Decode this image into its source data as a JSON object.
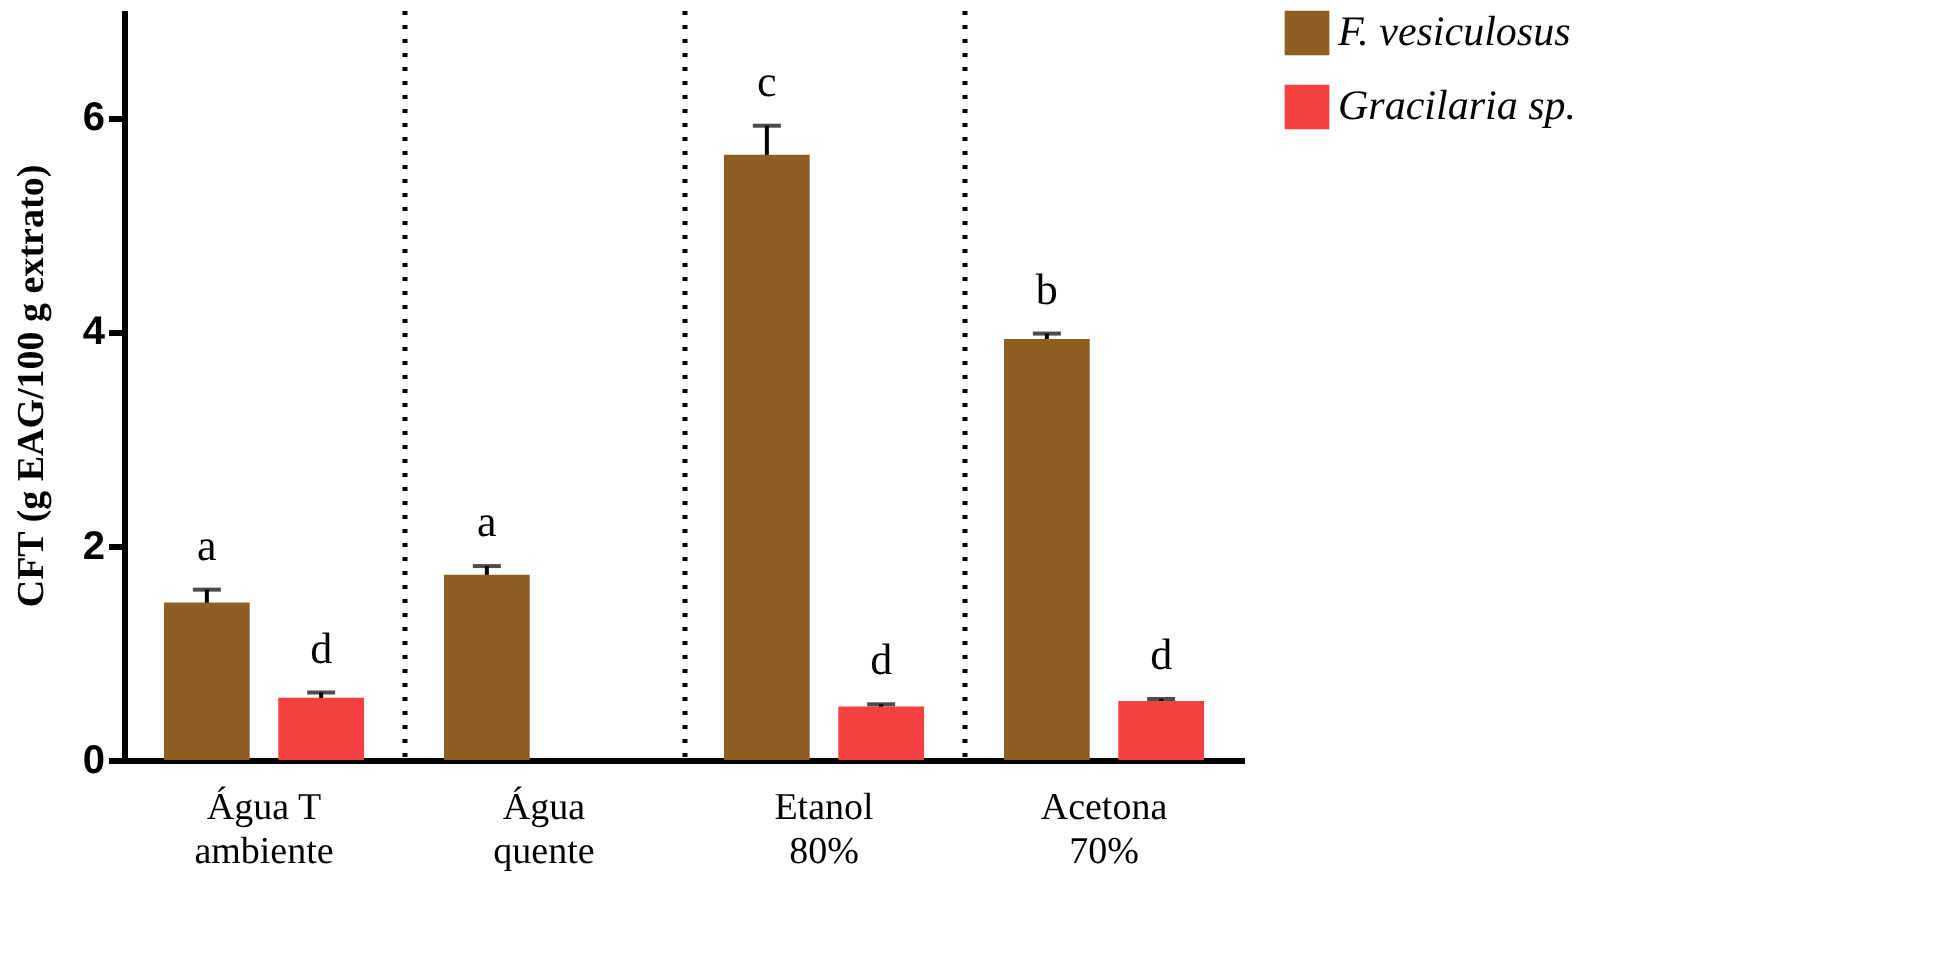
{
  "chart_data": {
    "type": "bar",
    "ylabel": "CFT (g EAG/100 g extrato)",
    "categories": [
      "Água T\nambiente",
      "Água\nquente",
      "Etanol\n80%",
      "Acetona\n70%"
    ],
    "series": [
      {
        "name": "F. vesiculosus",
        "color": "#8f5f22",
        "values": [
          1.47,
          1.73,
          5.65,
          3.93
        ],
        "errors": [
          0.12,
          0.08,
          0.27,
          0.05
        ],
        "value_labels": [
          "a",
          "a",
          "c",
          "b"
        ]
      },
      {
        "name": "Gracilaria sp.",
        "color": "#f44040",
        "values": [
          0.58,
          null,
          0.5,
          0.55
        ],
        "errors": [
          0.05,
          null,
          0.02,
          0.02
        ],
        "value_labels": [
          "d",
          null,
          "d",
          "d"
        ]
      }
    ],
    "ylim": [
      0,
      7
    ],
    "yticks": [
      0,
      2,
      4,
      6
    ],
    "grid": "x",
    "legend": "top right"
  }
}
